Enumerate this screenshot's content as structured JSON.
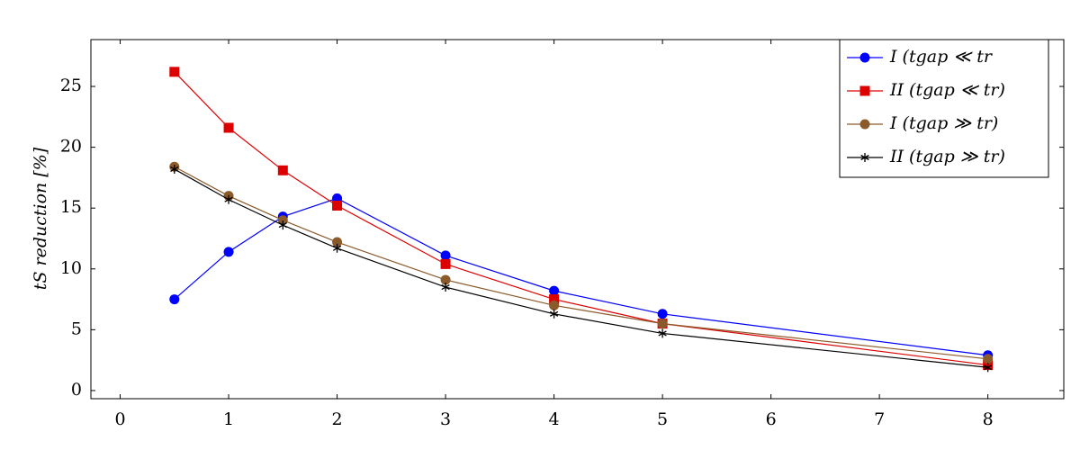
{
  "chart_data": {
    "type": "line",
    "y_label": "tS reduction [%]",
    "x": [
      0.5,
      1,
      1.5,
      2,
      3,
      4,
      5,
      8
    ],
    "series": [
      {
        "name": "I (tgap ≪ tr",
        "color": "#0000ff",
        "marker": "circle",
        "values": [
          7.5,
          11.4,
          14.3,
          15.8,
          11.1,
          8.2,
          6.3,
          2.9
        ]
      },
      {
        "name": "II  (tgap ≪ tr)",
        "color": "#dd0000",
        "marker": "square",
        "values": [
          26.2,
          21.6,
          18.1,
          15.2,
          10.4,
          7.5,
          5.5,
          2.1
        ]
      },
      {
        "name": "I (tgap ≫ tr)",
        "color": "#8b5a2b",
        "marker": "circle",
        "values": [
          18.4,
          16.0,
          14.0,
          12.2,
          9.1,
          7.0,
          5.5,
          2.6
        ]
      },
      {
        "name": "II  (tgap ≫ tr)",
        "color": "#000000",
        "marker": "star",
        "values": [
          18.2,
          15.7,
          13.6,
          11.7,
          8.5,
          6.3,
          4.7,
          1.9
        ]
      }
    ],
    "xlim": [
      -0.27,
      8.7
    ],
    "xticks": [
      0,
      1,
      2,
      3,
      4,
      5,
      6,
      7,
      8
    ],
    "ylim": [
      -0.67,
      28.85
    ],
    "yticks": [
      0,
      5,
      10,
      15,
      20,
      25
    ],
    "grid": false,
    "legend": "top-right"
  }
}
